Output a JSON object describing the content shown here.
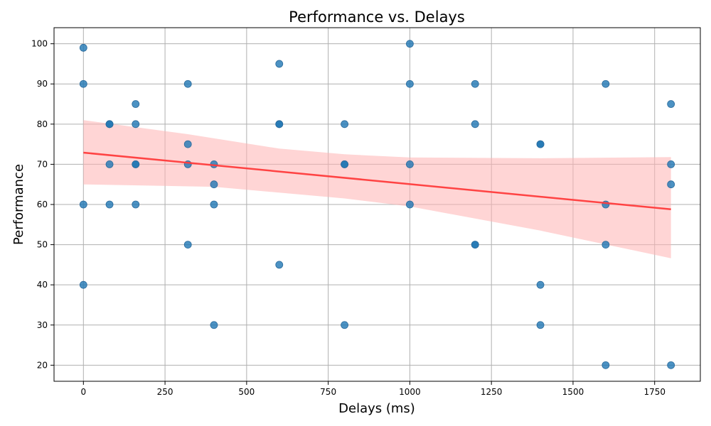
{
  "chart_data": {
    "type": "scatter",
    "title": "Performance vs. Delays",
    "xlabel": "Delays (ms)",
    "ylabel": "Performance",
    "xlim": [
      -90,
      1890
    ],
    "ylim": [
      16,
      104
    ],
    "xticks": [
      0,
      250,
      500,
      750,
      1000,
      1250,
      1500,
      1750
    ],
    "yticks": [
      20,
      30,
      40,
      50,
      60,
      70,
      80,
      90,
      100
    ],
    "grid": true,
    "point_color": "#1f77b4",
    "points": [
      {
        "x": 0,
        "y": 99
      },
      {
        "x": 0,
        "y": 90
      },
      {
        "x": 0,
        "y": 60
      },
      {
        "x": 0,
        "y": 40
      },
      {
        "x": 80,
        "y": 80
      },
      {
        "x": 80,
        "y": 80
      },
      {
        "x": 80,
        "y": 70
      },
      {
        "x": 80,
        "y": 60
      },
      {
        "x": 160,
        "y": 85
      },
      {
        "x": 160,
        "y": 80
      },
      {
        "x": 160,
        "y": 70
      },
      {
        "x": 160,
        "y": 70
      },
      {
        "x": 160,
        "y": 60
      },
      {
        "x": 320,
        "y": 90
      },
      {
        "x": 320,
        "y": 75
      },
      {
        "x": 320,
        "y": 70
      },
      {
        "x": 320,
        "y": 50
      },
      {
        "x": 400,
        "y": 70
      },
      {
        "x": 400,
        "y": 65
      },
      {
        "x": 400,
        "y": 60
      },
      {
        "x": 400,
        "y": 30
      },
      {
        "x": 600,
        "y": 95
      },
      {
        "x": 600,
        "y": 80
      },
      {
        "x": 600,
        "y": 80
      },
      {
        "x": 600,
        "y": 45
      },
      {
        "x": 800,
        "y": 80
      },
      {
        "x": 800,
        "y": 70
      },
      {
        "x": 800,
        "y": 70
      },
      {
        "x": 800,
        "y": 30
      },
      {
        "x": 1000,
        "y": 100
      },
      {
        "x": 1000,
        "y": 90
      },
      {
        "x": 1000,
        "y": 70
      },
      {
        "x": 1000,
        "y": 60
      },
      {
        "x": 1200,
        "y": 90
      },
      {
        "x": 1200,
        "y": 80
      },
      {
        "x": 1200,
        "y": 50
      },
      {
        "x": 1200,
        "y": 50
      },
      {
        "x": 1400,
        "y": 75
      },
      {
        "x": 1400,
        "y": 75
      },
      {
        "x": 1400,
        "y": 40
      },
      {
        "x": 1400,
        "y": 30
      },
      {
        "x": 1600,
        "y": 90
      },
      {
        "x": 1600,
        "y": 60
      },
      {
        "x": 1600,
        "y": 50
      },
      {
        "x": 1600,
        "y": 20
      },
      {
        "x": 1800,
        "y": 85
      },
      {
        "x": 1800,
        "y": 70
      },
      {
        "x": 1800,
        "y": 65
      },
      {
        "x": 1800,
        "y": 20
      }
    ],
    "regression": {
      "color": "#ff3b3b",
      "band_color": "#ffb3b3",
      "line": [
        {
          "x": 0,
          "y": 72.9
        },
        {
          "x": 1800,
          "y": 58.8
        }
      ],
      "band_upper": [
        {
          "x": 0,
          "y": 81.0
        },
        {
          "x": 320,
          "y": 77.5
        },
        {
          "x": 600,
          "y": 73.9
        },
        {
          "x": 800,
          "y": 72.5
        },
        {
          "x": 1000,
          "y": 71.7
        },
        {
          "x": 1400,
          "y": 71.5
        },
        {
          "x": 1800,
          "y": 71.8
        }
      ],
      "band_lower": [
        {
          "x": 0,
          "y": 65.0
        },
        {
          "x": 400,
          "y": 64.4
        },
        {
          "x": 800,
          "y": 61.5
        },
        {
          "x": 1000,
          "y": 59.5
        },
        {
          "x": 1400,
          "y": 53.5
        },
        {
          "x": 1800,
          "y": 46.6
        }
      ]
    }
  }
}
